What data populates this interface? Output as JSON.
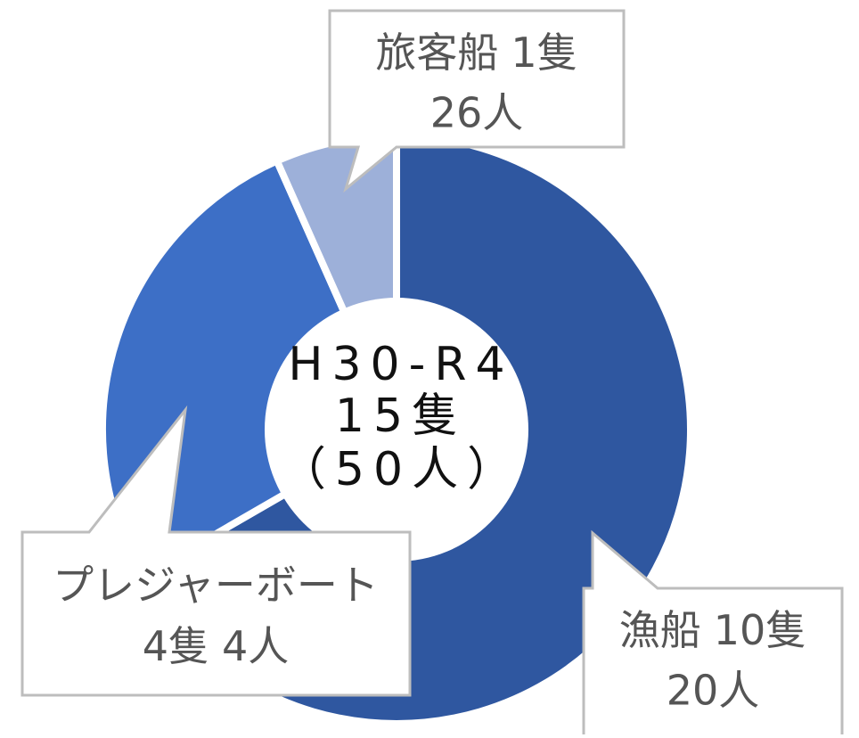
{
  "chart_data": {
    "type": "donut",
    "center_label": [
      "H30-R4",
      "15隻",
      "（50人）"
    ],
    "categories": [
      "漁船",
      "プレジャーボート",
      "旅客船"
    ],
    "values": [
      10,
      4,
      1
    ],
    "value_labels": [
      "10隻",
      "4隻",
      "1隻"
    ],
    "people_labels": [
      "20人",
      "4人",
      "26人"
    ],
    "colors": [
      "#2f57a0",
      "#3d6fc6",
      "#9db0d9"
    ]
  }
}
